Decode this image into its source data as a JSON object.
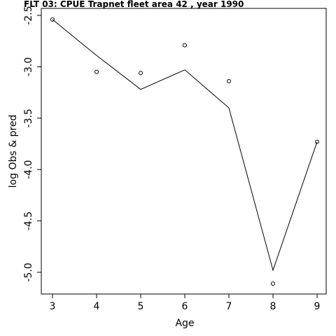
{
  "chart_data": {
    "type": "line",
    "title": "FLT 03:    CPUE       Trapnet   fleet        area        42             , year 1990",
    "xlabel": "Age",
    "ylabel": "log Obs & pred",
    "xlim": [
      3,
      9
    ],
    "ylim": [
      -5.2,
      -2.45
    ],
    "x_ticks": [
      3,
      4,
      5,
      6,
      7,
      8,
      9
    ],
    "y_ticks": [
      -2.5,
      -3.0,
      -3.5,
      -4.0,
      -4.5,
      -5.0
    ],
    "x_tick_labels": [
      "3",
      "4",
      "5",
      "6",
      "7",
      "8",
      "9"
    ],
    "y_tick_labels": [
      "-2.5",
      "-3.0",
      "-3.5",
      "-4.0",
      "-4.5",
      "-5.0"
    ],
    "x": [
      3,
      4,
      5,
      6,
      7,
      8,
      9
    ],
    "series": [
      {
        "values": [
          -2.54,
          -3.05,
          -3.06,
          -2.79,
          -3.14,
          -5.11,
          -3.73
        ],
        "style": "points"
      },
      {
        "values": [
          -2.54,
          -2.89,
          -3.22,
          -3.03,
          -3.4,
          -4.98,
          -3.73
        ],
        "style": "line"
      }
    ],
    "grid": false
  }
}
